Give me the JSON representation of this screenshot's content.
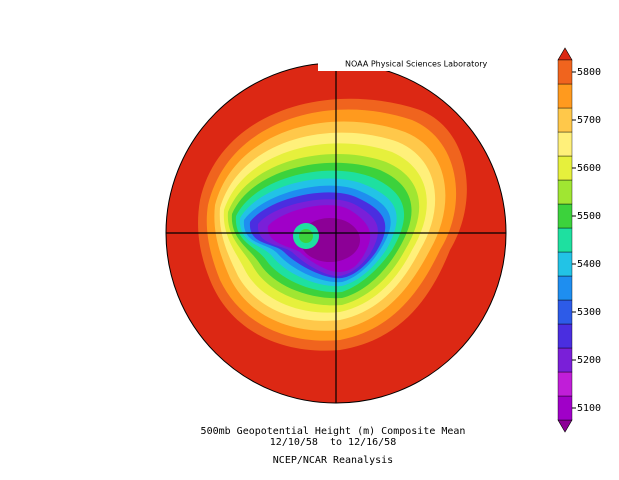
{
  "header": {
    "label": "NOAA Physical Sciences Laboratory"
  },
  "footer": {
    "title": "500mb Geopotential Height (m) Composite Mean",
    "dates": "12/10/58  to 12/16/58",
    "source": "NCEP/NCAR Reanalysis"
  },
  "colorbar": {
    "lim": [
      5075,
      5825
    ],
    "ticks": [
      5100,
      5200,
      5300,
      5400,
      5500,
      5600,
      5700,
      5800
    ],
    "colors": [
      "#8c0096",
      "#a000c8",
      "#c01ed8",
      "#7a1fd8",
      "#4a2ee0",
      "#2d5be8",
      "#1e8ef0",
      "#22c3e6",
      "#1ee0a0",
      "#3cd23c",
      "#a0e632",
      "#e6f03c",
      "#fff07a",
      "#ffc84a",
      "#ff9a1e",
      "#f0641e",
      "#dc2814"
    ]
  }
}
